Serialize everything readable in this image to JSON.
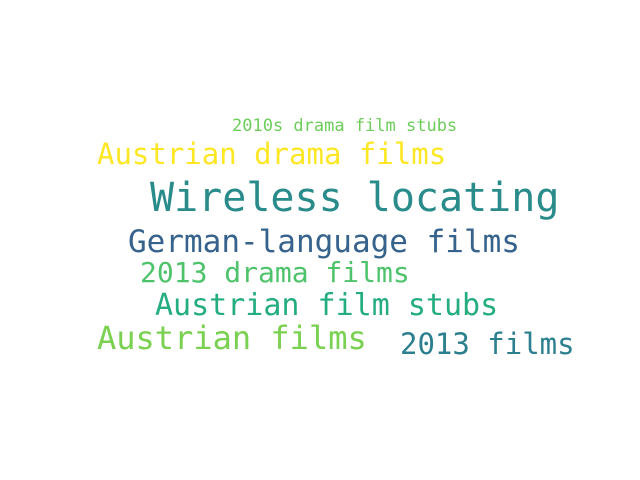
{
  "words": [
    {
      "text": "2010s drama film stubs",
      "color": "#6ccd5a"
    },
    {
      "text": "Austrian drama films",
      "color": "#fde725"
    },
    {
      "text": "Wireless locating",
      "color": "#2a8b8b"
    },
    {
      "text": "German-language films",
      "color": "#36628c"
    },
    {
      "text": "2013 drama films",
      "color": "#4ec36b"
    },
    {
      "text": "Austrian film stubs",
      "color": "#25ad82"
    },
    {
      "text": "Austrian films",
      "color": "#7ad151"
    },
    {
      "text": "2013 films",
      "color": "#2c7f8e"
    }
  ]
}
